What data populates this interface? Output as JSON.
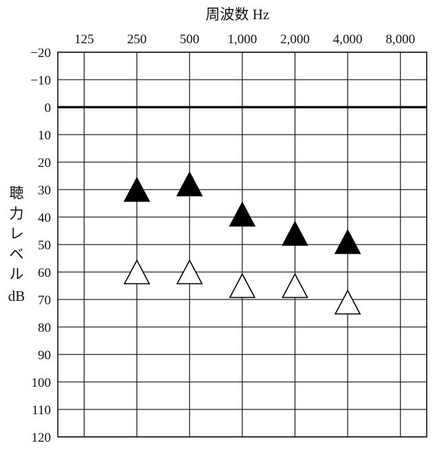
{
  "chart_data": {
    "type": "scatter",
    "title": "周波数 Hz",
    "xlabel": "周波数 Hz",
    "ylabel_lines": [
      "聴",
      "力",
      "レ",
      "ベ",
      "ル",
      "dB"
    ],
    "x_ticks": [
      "125",
      "250",
      "500",
      "1,000",
      "2,000",
      "4,000",
      "8,000"
    ],
    "y_ticks": [
      "−20",
      "−10",
      "0",
      "10",
      "20",
      "30",
      "40",
      "50",
      "60",
      "70",
      "80",
      "90",
      "100",
      "110",
      "120"
    ],
    "y_values": [
      -20,
      -10,
      0,
      10,
      20,
      30,
      40,
      50,
      60,
      70,
      80,
      90,
      100,
      110,
      120
    ],
    "ylim": [
      -20,
      120
    ],
    "y_inverted": true,
    "reference_line": 0,
    "grid": true,
    "series": [
      {
        "marker": "filled-triangle",
        "points": [
          {
            "x": "250",
            "y": 30
          },
          {
            "x": "500",
            "y": 28
          },
          {
            "x": "1,000",
            "y": 39
          },
          {
            "x": "2,000",
            "y": 46
          },
          {
            "x": "4,000",
            "y": 49
          }
        ]
      },
      {
        "marker": "open-triangle",
        "points": [
          {
            "x": "250",
            "y": 60
          },
          {
            "x": "500",
            "y": 60
          },
          {
            "x": "1,000",
            "y": 65
          },
          {
            "x": "2,000",
            "y": 65
          },
          {
            "x": "4,000",
            "y": 71
          }
        ]
      }
    ]
  }
}
